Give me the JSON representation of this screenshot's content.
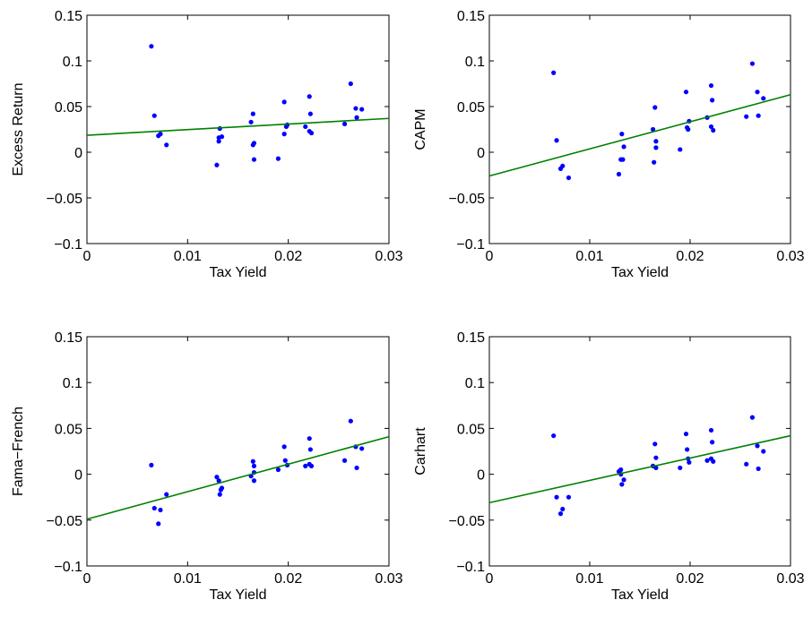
{
  "chart_data": [
    {
      "type": "scatter",
      "xlabel": "Tax Yield",
      "ylabel": "Excess Return",
      "color": "#0000ff",
      "x": [
        0.0064,
        0.0067,
        0.0071,
        0.0073,
        0.0079,
        0.0129,
        0.0131,
        0.0132,
        0.0134,
        0.0131,
        0.0163,
        0.0165,
        0.0166,
        0.0165,
        0.0166,
        0.019,
        0.0196,
        0.0196,
        0.0198,
        0.0199,
        0.0217,
        0.0221,
        0.0222,
        0.0221,
        0.0223,
        0.0256,
        0.0262,
        0.0267,
        0.0268,
        0.0273
      ],
      "values": [
        0.116,
        0.04,
        0.018,
        0.02,
        0.008,
        -0.014,
        0.012,
        0.026,
        0.017,
        0.016,
        0.033,
        0.042,
        0.01,
        0.008,
        -0.008,
        -0.007,
        0.055,
        0.02,
        0.028,
        0.03,
        0.028,
        0.061,
        0.042,
        0.023,
        0.021,
        0.031,
        0.075,
        0.048,
        0.038,
        0.047
      ],
      "fit": {
        "color": "#008000",
        "x": [
          0,
          0.03
        ],
        "values": [
          0.0186,
          0.037
        ]
      },
      "xlim": [
        0,
        0.03
      ],
      "ylim": [
        -0.1,
        0.15
      ],
      "xticks": [
        0,
        0.01,
        0.02,
        0.03
      ],
      "yticks": [
        {
          "value": -0.1,
          "label": "−0.1"
        },
        {
          "value": -0.05,
          "label": "−0.05"
        },
        0,
        0.05,
        0.1,
        0.15
      ]
    },
    {
      "type": "scatter",
      "xlabel": "Tax Yield",
      "ylabel": "CAPM",
      "color": "#0000ff",
      "x": [
        0.0064,
        0.0067,
        0.0071,
        0.0073,
        0.0079,
        0.0129,
        0.0131,
        0.0133,
        0.0134,
        0.0132,
        0.0163,
        0.0165,
        0.0166,
        0.0166,
        0.0164,
        0.019,
        0.0196,
        0.0197,
        0.0198,
        0.0199,
        0.0217,
        0.0221,
        0.0222,
        0.0221,
        0.0223,
        0.0256,
        0.0262,
        0.0267,
        0.0268,
        0.0273
      ],
      "values": [
        0.087,
        0.013,
        -0.018,
        -0.015,
        -0.028,
        -0.024,
        -0.008,
        -0.008,
        0.006,
        0.02,
        0.025,
        0.049,
        0.012,
        0.005,
        -0.011,
        0.003,
        0.066,
        0.027,
        0.025,
        0.034,
        0.038,
        0.073,
        0.057,
        0.028,
        0.024,
        0.039,
        0.097,
        0.066,
        0.04,
        0.059
      ],
      "fit": {
        "color": "#008000",
        "x": [
          0,
          0.03
        ],
        "values": [
          -0.026,
          0.063
        ]
      },
      "xlim": [
        0,
        0.03
      ],
      "ylim": [
        -0.1,
        0.15
      ],
      "xticks": [
        0,
        0.01,
        0.02,
        0.03
      ],
      "yticks": [
        {
          "value": -0.1,
          "label": "−0.1"
        },
        {
          "value": -0.05,
          "label": "−0.05"
        },
        0,
        0.05,
        0.1,
        0.15
      ]
    },
    {
      "type": "scatter",
      "xlabel": "Tax Yield",
      "ylabel": "Fama−French",
      "color": "#0000ff",
      "x": [
        0.0064,
        0.0067,
        0.0071,
        0.0073,
        0.0079,
        0.0129,
        0.0131,
        0.0132,
        0.0133,
        0.0134,
        0.0163,
        0.0165,
        0.0166,
        0.0166,
        0.0166,
        0.019,
        0.0196,
        0.0197,
        0.0199,
        0.0217,
        0.0221,
        0.0222,
        0.0221,
        0.0223,
        0.0256,
        0.0262,
        0.0267,
        0.0268,
        0.0273
      ],
      "values": [
        0.01,
        -0.037,
        -0.054,
        -0.039,
        -0.022,
        -0.003,
        -0.007,
        -0.022,
        -0.017,
        -0.015,
        -0.002,
        0.014,
        0.009,
        0.002,
        -0.007,
        0.005,
        0.03,
        0.015,
        0.01,
        0.009,
        0.039,
        0.027,
        0.011,
        0.009,
        0.015,
        0.058,
        0.03,
        0.007,
        0.028
      ],
      "fit": {
        "color": "#008000",
        "x": [
          0,
          0.03
        ],
        "values": [
          -0.049,
          0.041
        ]
      },
      "xlim": [
        0,
        0.03
      ],
      "ylim": [
        -0.1,
        0.15
      ],
      "xticks": [
        0,
        0.01,
        0.02,
        0.03
      ],
      "yticks": [
        {
          "value": -0.1,
          "label": "−0.1"
        },
        {
          "value": -0.05,
          "label": "−0.05"
        },
        0,
        0.05,
        0.1,
        0.15
      ]
    },
    {
      "type": "scatter",
      "xlabel": "Tax Yield",
      "ylabel": "Carhart",
      "color": "#0000ff",
      "x": [
        0.0064,
        0.0067,
        0.0071,
        0.0073,
        0.0079,
        0.0129,
        0.0131,
        0.0131,
        0.0132,
        0.0134,
        0.0163,
        0.0165,
        0.0166,
        0.0166,
        0.019,
        0.0196,
        0.0197,
        0.0198,
        0.0199,
        0.0217,
        0.0221,
        0.0222,
        0.0223,
        0.0221,
        0.0256,
        0.0262,
        0.0267,
        0.0268,
        0.0273
      ],
      "values": [
        0.042,
        -0.025,
        -0.043,
        -0.038,
        -0.025,
        0.003,
        0.005,
        0.0,
        -0.011,
        -0.006,
        0.009,
        0.033,
        0.018,
        0.007,
        0.007,
        0.044,
        0.027,
        0.017,
        0.013,
        0.015,
        0.048,
        0.035,
        0.014,
        0.017,
        0.011,
        0.062,
        0.031,
        0.006,
        0.025
      ],
      "fit": {
        "color": "#008000",
        "x": [
          0,
          0.03
        ],
        "values": [
          -0.031,
          0.042
        ]
      },
      "xlim": [
        0,
        0.03
      ],
      "ylim": [
        -0.1,
        0.15
      ],
      "xticks": [
        0,
        0.01,
        0.02,
        0.03
      ],
      "yticks": [
        {
          "value": -0.1,
          "label": "−0.1"
        },
        {
          "value": -0.05,
          "label": "−0.05"
        },
        0,
        0.05,
        0.1,
        0.15
      ]
    }
  ]
}
